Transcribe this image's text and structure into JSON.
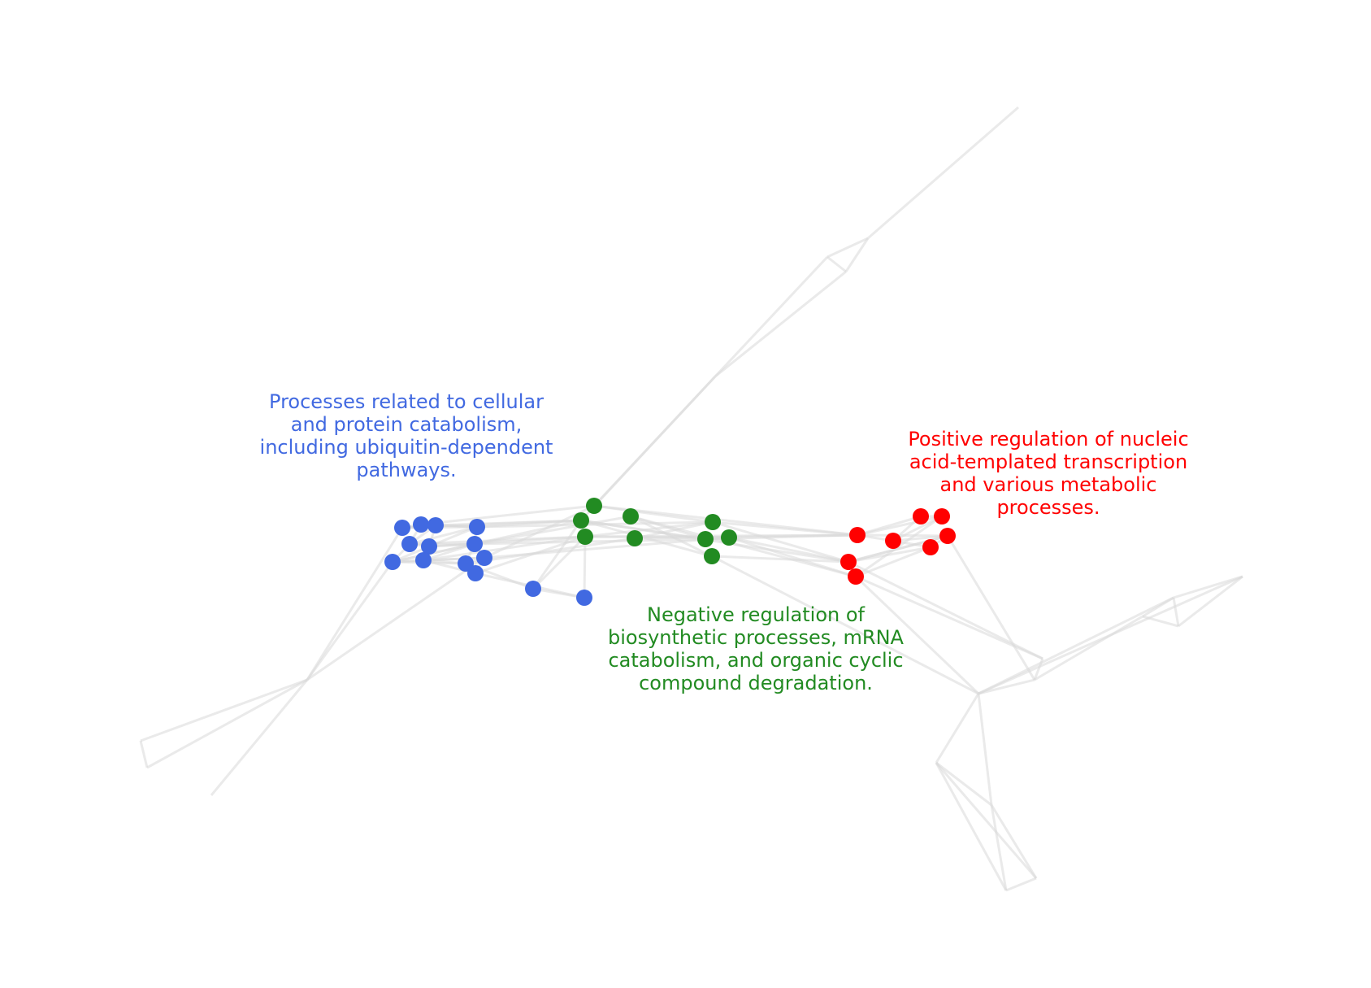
{
  "colors": {
    "blue": "#4169e1",
    "green": "#228b22",
    "red": "#ff0000",
    "edge": "#d9d9d9",
    "background": "#ffffff"
  },
  "clusters": {
    "blue": {
      "label_lines": [
        "Processes related to cellular",
        "and protein catabolism,",
        "including ubiquitin-dependent",
        "pathways."
      ]
    },
    "green": {
      "label_lines": [
        "Negative regulation of",
        "biosynthetic processes, mRNA",
        "catabolism, and organic cyclic",
        "compound degradation."
      ]
    },
    "red": {
      "label_lines": [
        "Positive regulation of nucleic",
        "acid-templated transcription",
        "and various metabolic",
        "processes."
      ]
    }
  }
}
